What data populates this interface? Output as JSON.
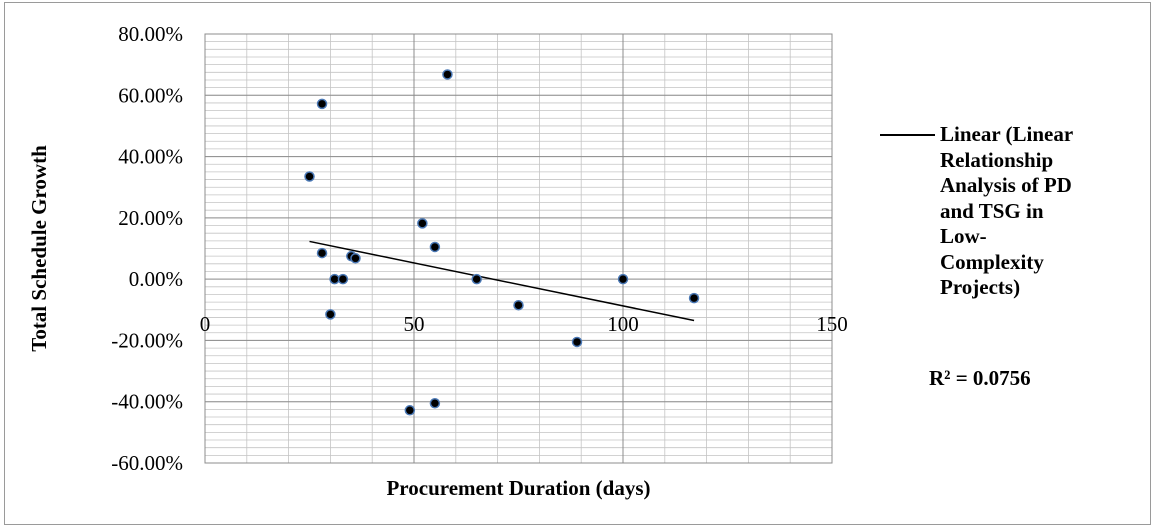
{
  "chart_data": {
    "type": "scatter",
    "title": "",
    "xlabel": "Procurement Duration (days)",
    "ylabel": "Total Schedule Growth",
    "xlim": [
      0,
      150
    ],
    "ylim": [
      -0.6,
      0.8
    ],
    "x_ticks": [
      0,
      50,
      100,
      150
    ],
    "x_tick_labels": [
      "0",
      "50",
      "100",
      "150"
    ],
    "y_ticks": [
      -0.6,
      -0.4,
      -0.2,
      0,
      0.2,
      0.4,
      0.6,
      0.8
    ],
    "y_tick_labels": [
      "-60.00%",
      "-40.00%",
      "-20.00%",
      "0.00%",
      "20.00%",
      "40.00%",
      "60.00%",
      "80.00%"
    ],
    "grid": true,
    "legend_position": "right",
    "points": [
      {
        "x": 25,
        "y": 0.335
      },
      {
        "x": 28,
        "y": 0.572
      },
      {
        "x": 28,
        "y": 0.085
      },
      {
        "x": 30,
        "y": -0.115
      },
      {
        "x": 31,
        "y": 0.0
      },
      {
        "x": 33,
        "y": 0.0
      },
      {
        "x": 35,
        "y": 0.075
      },
      {
        "x": 36,
        "y": 0.068
      },
      {
        "x": 49,
        "y": -0.428
      },
      {
        "x": 52,
        "y": 0.182
      },
      {
        "x": 55,
        "y": 0.105
      },
      {
        "x": 55,
        "y": -0.405
      },
      {
        "x": 58,
        "y": 0.668
      },
      {
        "x": 65,
        "y": 0.0
      },
      {
        "x": 75,
        "y": -0.085
      },
      {
        "x": 89,
        "y": -0.205
      },
      {
        "x": 100,
        "y": 0.0
      },
      {
        "x": 117,
        "y": -0.062
      }
    ],
    "trendline": {
      "type": "linear",
      "x_start": 25,
      "y_start": 0.123,
      "x_end": 117,
      "y_end": -0.135,
      "legend_label": "Linear (Linear Relationship Analysis of PD and TSG in Low-Complexity Projects)",
      "r_squared_label": "R² = 0.0756"
    },
    "colors": {
      "marker_fill": "#000000",
      "marker_stroke": "#4a78b5",
      "trendline": "#000000",
      "grid": "#8c8c8c"
    }
  }
}
